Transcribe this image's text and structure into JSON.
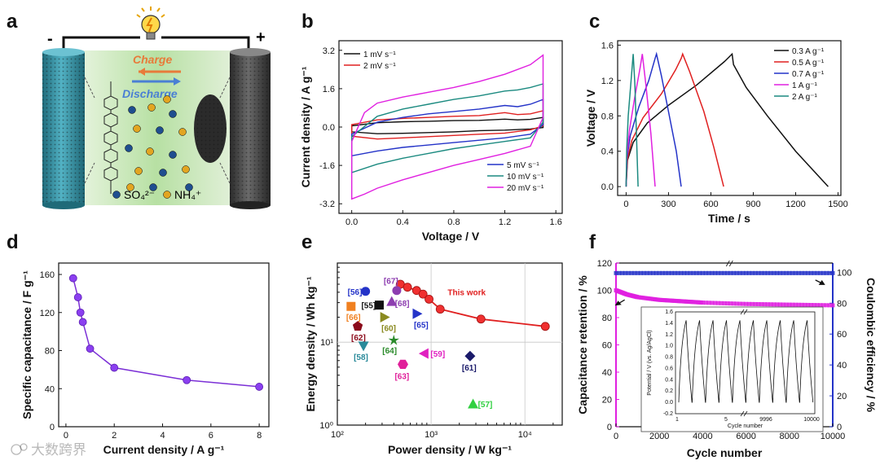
{
  "figure": {
    "panel_labels": [
      "a",
      "b",
      "c",
      "d",
      "e",
      "f"
    ],
    "watermark": "大数跨界"
  },
  "panel_a": {
    "minus": "-",
    "plus": "+",
    "charge": "Charge",
    "discharge": "Discharge",
    "legend_sulfate": "SO₄²⁻",
    "legend_ammonium": "NH₄⁺",
    "colors": {
      "charge": "#e87a3a",
      "discharge": "#4a7fd4",
      "left_electrode": "#3c96a8",
      "right_electrode": "#444444",
      "sulfate": "#1f4e8f",
      "ammonium": "#e2a521"
    }
  },
  "chart_data": [
    {
      "id": "b",
      "type": "line",
      "xlabel": "Voltage / V",
      "ylabel": "Current density / A g⁻¹",
      "xlim": [
        -0.1,
        1.65
      ],
      "ylim": [
        -3.6,
        3.6
      ],
      "xticks": [
        0.0,
        0.4,
        0.8,
        1.2,
        1.6
      ],
      "xtick_labels": [
        "0.0",
        "0.4",
        "0.8",
        "1.2",
        "1.6"
      ],
      "yticks": [
        -3.2,
        -1.6,
        0.0,
        1.6,
        3.2
      ],
      "ytick_labels": [
        "-3.2",
        "-1.6",
        "0.0",
        "1.6",
        "3.2"
      ],
      "legend_top": [
        "1 mV s⁻¹",
        "2 mV s⁻¹"
      ],
      "legend_bottom": [
        "5 mV s⁻¹",
        "10 mV s⁻¹",
        "20 mV s⁻¹"
      ],
      "series": [
        {
          "name": "1 mV s⁻¹",
          "color": "#111111",
          "x": [
            0,
            0.2,
            0.4,
            0.6,
            0.8,
            1.0,
            1.2,
            1.3,
            1.4,
            1.5,
            1.5,
            1.4,
            1.2,
            1.0,
            0.8,
            0.6,
            0.4,
            0.2,
            0
          ],
          "y": [
            0.05,
            0.18,
            0.22,
            0.24,
            0.27,
            0.28,
            0.33,
            0.3,
            0.32,
            0.4,
            -0.02,
            -0.08,
            -0.13,
            -0.15,
            -0.2,
            -0.23,
            -0.26,
            -0.28,
            -0.2
          ]
        },
        {
          "name": "2 mV s⁻¹",
          "color": "#e02020",
          "x": [
            0,
            0.2,
            0.4,
            0.6,
            0.8,
            1.0,
            1.2,
            1.3,
            1.4,
            1.5,
            1.5,
            1.4,
            1.2,
            1.0,
            0.8,
            0.6,
            0.4,
            0.2,
            0
          ],
          "y": [
            0.1,
            0.3,
            0.36,
            0.4,
            0.45,
            0.48,
            0.6,
            0.52,
            0.55,
            0.68,
            0.05,
            -0.12,
            -0.25,
            -0.3,
            -0.35,
            -0.4,
            -0.45,
            -0.5,
            -0.38
          ]
        },
        {
          "name": "5 mV s⁻¹",
          "color": "#2433c8",
          "x": [
            0,
            0.2,
            0.4,
            0.6,
            0.8,
            1.0,
            1.2,
            1.3,
            1.4,
            1.5,
            1.5,
            1.4,
            1.2,
            1.0,
            0.8,
            0.6,
            0.4,
            0.2,
            0
          ],
          "y": [
            -0.3,
            0.2,
            0.4,
            0.55,
            0.65,
            0.75,
            0.9,
            0.85,
            0.95,
            1.15,
            0.1,
            -0.3,
            -0.45,
            -0.55,
            -0.65,
            -0.75,
            -0.85,
            -1.0,
            -1.2
          ]
        },
        {
          "name": "10 mV s⁻¹",
          "color": "#1b8a80",
          "x": [
            0,
            0.2,
            0.4,
            0.6,
            0.8,
            1.0,
            1.2,
            1.3,
            1.4,
            1.5,
            1.5,
            1.4,
            1.2,
            1.0,
            0.8,
            0.6,
            0.4,
            0.2,
            0
          ],
          "y": [
            -0.4,
            0.45,
            0.75,
            0.95,
            1.15,
            1.3,
            1.5,
            1.55,
            1.65,
            1.8,
            0.2,
            -0.45,
            -0.6,
            -0.75,
            -0.9,
            -1.1,
            -1.3,
            -1.55,
            -1.9
          ]
        },
        {
          "name": "20 mV s⁻¹",
          "color": "#e020e0",
          "x": [
            0,
            0.1,
            0.2,
            0.4,
            0.6,
            0.8,
            1.0,
            1.2,
            1.4,
            1.5,
            1.5,
            1.4,
            1.2,
            1.0,
            0.8,
            0.6,
            0.4,
            0.2,
            0.1,
            0
          ],
          "y": [
            -0.6,
            0.6,
            1.0,
            1.25,
            1.45,
            1.65,
            1.9,
            2.2,
            2.6,
            3.0,
            0.4,
            -0.8,
            -1.1,
            -1.35,
            -1.6,
            -1.9,
            -2.2,
            -2.55,
            -2.8,
            -3.0
          ]
        }
      ]
    },
    {
      "id": "c",
      "type": "line",
      "xlabel": "Time / s",
      "ylabel": "Voltage / V",
      "xlim": [
        -60,
        1520
      ],
      "ylim": [
        -0.1,
        1.65
      ],
      "xticks": [
        0,
        300,
        600,
        900,
        1200,
        1500
      ],
      "xtick_labels": [
        "0",
        "300",
        "600",
        "900",
        "1200",
        "1500"
      ],
      "yticks": [
        0.0,
        0.4,
        0.8,
        1.2,
        1.6
      ],
      "ytick_labels": [
        "0.0",
        "0.4",
        "0.8",
        "1.2",
        "1.6"
      ],
      "legend": [
        "0.3 A g⁻¹",
        "0.5 A g⁻¹",
        "0.7 A g⁻¹",
        "1 A g⁻¹",
        "2 A g⁻¹"
      ],
      "series": [
        {
          "name": "0.3 A g⁻¹",
          "color": "#111111",
          "x": [
            0,
            10,
            50,
            150,
            300,
            500,
            700,
            750,
            760,
            850,
            1000,
            1200,
            1430
          ],
          "y": [
            0,
            0.3,
            0.5,
            0.72,
            0.92,
            1.15,
            1.42,
            1.5,
            1.38,
            1.12,
            0.8,
            0.4,
            0
          ]
        },
        {
          "name": "0.5 A g⁻¹",
          "color": "#e02020",
          "x": [
            0,
            8,
            40,
            120,
            250,
            350,
            390,
            400,
            450,
            550,
            620,
            690
          ],
          "y": [
            0,
            0.3,
            0.52,
            0.78,
            1.05,
            1.32,
            1.45,
            1.5,
            1.3,
            0.85,
            0.45,
            0
          ]
        },
        {
          "name": "0.7 A g⁻¹",
          "color": "#2433c8",
          "x": [
            0,
            6,
            30,
            90,
            160,
            205,
            215,
            250,
            300,
            355,
            390
          ],
          "y": [
            0,
            0.32,
            0.58,
            0.9,
            1.2,
            1.45,
            1.5,
            1.25,
            0.85,
            0.4,
            0
          ]
        },
        {
          "name": "1 A g⁻¹",
          "color": "#e020e0",
          "x": [
            0,
            5,
            25,
            60,
            100,
            115,
            140,
            175,
            205
          ],
          "y": [
            0,
            0.35,
            0.65,
            1.0,
            1.35,
            1.5,
            1.15,
            0.6,
            0
          ]
        },
        {
          "name": "2 A g⁻¹",
          "color": "#1b8a80",
          "x": [
            0,
            4,
            15,
            35,
            50,
            62,
            75,
            85
          ],
          "y": [
            0,
            0.4,
            0.8,
            1.2,
            1.5,
            1.15,
            0.5,
            0
          ]
        }
      ]
    },
    {
      "id": "d",
      "type": "line",
      "xlabel": "Current density / A g⁻¹",
      "ylabel": "Specific capacitance / F g⁻¹",
      "xlim": [
        -0.3,
        8.4
      ],
      "ylim": [
        0,
        172
      ],
      "xticks": [
        0,
        2,
        4,
        6,
        8
      ],
      "xtick_labels": [
        "0",
        "2",
        "4",
        "6",
        "8"
      ],
      "yticks": [
        0,
        40,
        80,
        120,
        160
      ],
      "ytick_labels": [
        "0",
        "40",
        "80",
        "120",
        "160"
      ],
      "series": [
        {
          "name": "",
          "color": "#7b2fd6",
          "x": [
            0.3,
            0.5,
            0.6,
            0.7,
            1,
            2,
            5,
            8
          ],
          "y": [
            156,
            136,
            120,
            110,
            82,
            62,
            49,
            42
          ]
        }
      ]
    },
    {
      "id": "e",
      "type": "scatter",
      "xlabel": "Power density / W kg⁻¹",
      "ylabel": "Energy density / Wh kg⁻¹",
      "xscale": "log",
      "yscale": "log",
      "xlim": [
        100,
        25000
      ],
      "ylim": [
        1,
        90
      ],
      "xticks": [
        100,
        1000,
        10000
      ],
      "xtick_labels": [
        "10²",
        "10³",
        "10⁴"
      ],
      "yticks": [
        1,
        10
      ],
      "ytick_labels": [
        "10⁰",
        "10¹"
      ],
      "this_work": {
        "label": "This work",
        "color": "#e02020",
        "x": [
          470,
          560,
          700,
          820,
          950,
          1250,
          3400,
          16500
        ],
        "y": [
          50,
          46,
          42,
          38,
          33,
          25,
          19,
          15.5
        ]
      },
      "references": [
        {
          "label": "[56]",
          "x": 200,
          "y": 41,
          "marker": "circle",
          "color": "#2433c8"
        },
        {
          "label": "[67]",
          "x": 430,
          "y": 42,
          "marker": "circle",
          "color": "#8d3db0"
        },
        {
          "label": "[55]",
          "x": 280,
          "y": 28,
          "marker": "square",
          "color": "#111111"
        },
        {
          "label": "[66]",
          "x": 140,
          "y": 27,
          "marker": "square",
          "color": "#f08020"
        },
        {
          "label": "[68]",
          "x": 380,
          "y": 31,
          "marker": "triangle-up",
          "color": "#8d3db0"
        },
        {
          "label": "[60]",
          "x": 320,
          "y": 20,
          "marker": "triangle-right",
          "color": "#8a8a20"
        },
        {
          "label": "[65]",
          "x": 710,
          "y": 22,
          "marker": "triangle-right",
          "color": "#2433c8"
        },
        {
          "label": "[62]",
          "x": 165,
          "y": 15.5,
          "marker": "pentagon",
          "color": "#8b0a1a"
        },
        {
          "label": "[64]",
          "x": 400,
          "y": 10.5,
          "marker": "star",
          "color": "#2a8a2a"
        },
        {
          "label": "[58]",
          "x": 190,
          "y": 9,
          "marker": "triangle-down",
          "color": "#2a8a9a"
        },
        {
          "label": "[59]",
          "x": 840,
          "y": 7.3,
          "marker": "triangle-left",
          "color": "#e020c0"
        },
        {
          "label": "[61]",
          "x": 2600,
          "y": 6.8,
          "marker": "diamond",
          "color": "#1a1a6a"
        },
        {
          "label": "[63]",
          "x": 500,
          "y": 5.4,
          "marker": "hexagon",
          "color": "#e0209a"
        },
        {
          "label": "[57]",
          "x": 2800,
          "y": 1.8,
          "marker": "triangle-up",
          "color": "#30d040"
        }
      ]
    },
    {
      "id": "f",
      "type": "scatter",
      "xlabel": "Cycle number",
      "ylabel_left": "Capacitance retention / %",
      "ylabel_right": "Coulombic efficiency / %",
      "xlim": [
        0,
        10000
      ],
      "ylim": [
        0,
        120
      ],
      "ylim_right": [
        0,
        106
      ],
      "xticks": [
        0,
        2000,
        4000,
        6000,
        8000,
        10000
      ],
      "xtick_labels": [
        "0",
        "2000",
        "4000",
        "6000",
        "8000",
        "10000"
      ],
      "yticks_left": [
        0,
        20,
        40,
        60,
        80,
        100,
        120
      ],
      "ytick_labels_left": [
        "0",
        "20",
        "40",
        "60",
        "80",
        "100",
        "120"
      ],
      "yticks_right": [
        0,
        20,
        40,
        60,
        80,
        100
      ],
      "ytick_labels_right": [
        "0",
        "20",
        "40",
        "60",
        "80",
        "100"
      ],
      "series": [
        {
          "name": "Capacitance retention",
          "color": "#e020e0",
          "x": [
            0,
            500,
            1000,
            2000,
            3000,
            4000,
            6000,
            8000,
            10000
          ],
          "y": [
            100,
            97,
            95,
            93,
            92,
            91,
            90,
            89.5,
            89
          ]
        },
        {
          "name": "Coulombic efficiency",
          "color": "#2433c8",
          "axis": "right",
          "x": [
            0,
            2000,
            4000,
            6000,
            8000,
            10000
          ],
          "y": [
            99.5,
            99.5,
            99.5,
            99.5,
            99.5,
            99.5
          ]
        }
      ],
      "inset": {
        "ylabel": "Potential / V (vs. Ag/AgCl)",
        "xlabel": "Cycle number",
        "xtick_labels": [
          "1",
          "5",
          "9996",
          "10000"
        ],
        "ytick_labels": [
          "-0.2",
          "0.0",
          "0.2",
          "0.4",
          "0.6",
          "0.8",
          "1.0",
          "1.2",
          "1.4",
          "1.6"
        ],
        "cycles": 10
      }
    }
  ]
}
